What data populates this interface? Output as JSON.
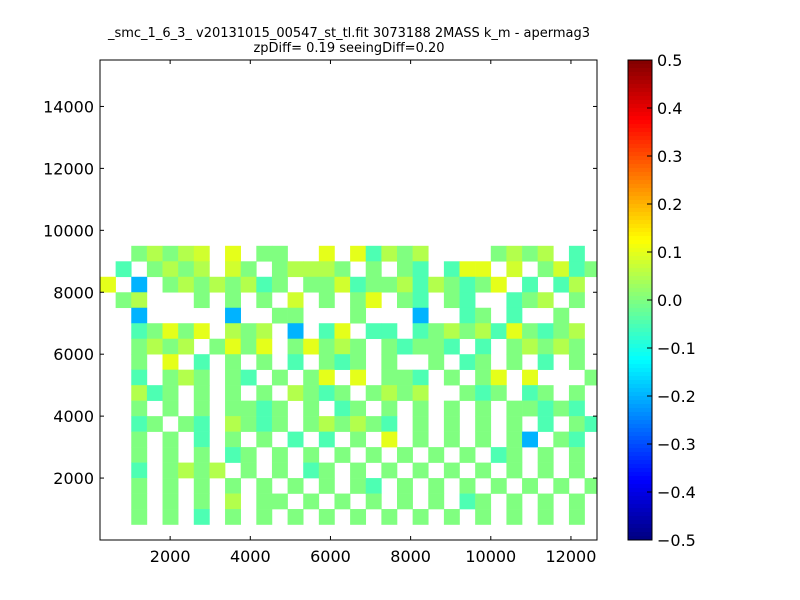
{
  "chart_data": {
    "type": "heatmap",
    "title_lines": [
      "_smc_1_6_3_ v20131015_00547_st_tl.fit 3073188 2MASS k_m - apermag3",
      "zpDiff= 0.19 seeingDiff=0.20"
    ],
    "xlabel": "",
    "ylabel": "",
    "xlim": [
      250,
      12650
    ],
    "ylim": [
      0,
      15500
    ],
    "xticks": [
      2000,
      4000,
      6000,
      8000,
      10000,
      12000
    ],
    "xtick_labels": [
      "2000",
      "4000",
      "6000",
      "8000",
      "10000",
      "12000"
    ],
    "yticks": [
      2000,
      4000,
      6000,
      8000,
      10000,
      12000,
      14000
    ],
    "ytick_labels": [
      "2000",
      "4000",
      "6000",
      "8000",
      "10000",
      "12000",
      "14000"
    ],
    "grid": false,
    "colormap": "jet",
    "colorbar": {
      "vmin": -0.5,
      "vmax": 0.5,
      "ticks": [
        0.5,
        0.4,
        0.3,
        0.2,
        0.1,
        0.0,
        -0.1,
        -0.2,
        -0.3,
        -0.4,
        -0.5
      ],
      "tick_labels": [
        "0.5",
        "0.4",
        "0.3",
        "0.2",
        "0.1",
        "0.0",
        "−0.1",
        "−0.2",
        "−0.3",
        "−0.4",
        "−0.5"
      ]
    },
    "cell_size": [
      390,
      500
    ],
    "x_origin": 250,
    "y_origin": 0,
    "value_rows_top_to_bottom": [
      "....................................",
      "..02023.1.00..1.1-202....0202.-.02..",
      ".-.0202.30.02220.0.0-.-11.3.03-03...",
      "1.6.020202-0.003-002-20-01.-.-2.02..",
      ".02...0.0.0.3.0.01.0-.0-..-02.0.0...",
      "..6.....6..00...0...6..-0.-..0......",
      "..-0101.202.6.-1.--.-0202-10-02.0...",
      "..0202.0101.01020.0-00-.-.02020.0...",
      "..0.1.-.0.0.-.0-0.0..0.-0.0.-.0.0...",
      "..-.020.0-.0.01.1.00-.0.01.1...0....",
      "..2-0.0.0.0.20-0.0202..0-0.-0.0.0...",
      "..0.0.0.00-0.0.-0.0.0.0.0.00-0-.....",
      "..-0.0-.20-0.02020-.0.0.0.0.-.0-....",
      "..0.0.-.0.0.-.-.0.1.0.0.0.06.0-.....",
      "..0.0.0.-0.0.0.0.0.0.0.0.-0.0.0.0...",
      "..-.0202.0.0.-0.0.0.0.0.0.0.0.0.....",
      "..0.0.0.0.0.0.0.0-.0.0.0.0.0.0.0....",
      "..0.0.0.2.00.0.0.0.0.0.-0.0.0.0.....",
      "..0.0.-.0.0.0.0.0.0.0.0.0.0.0.0.....",
      "...................................."
    ]
  }
}
